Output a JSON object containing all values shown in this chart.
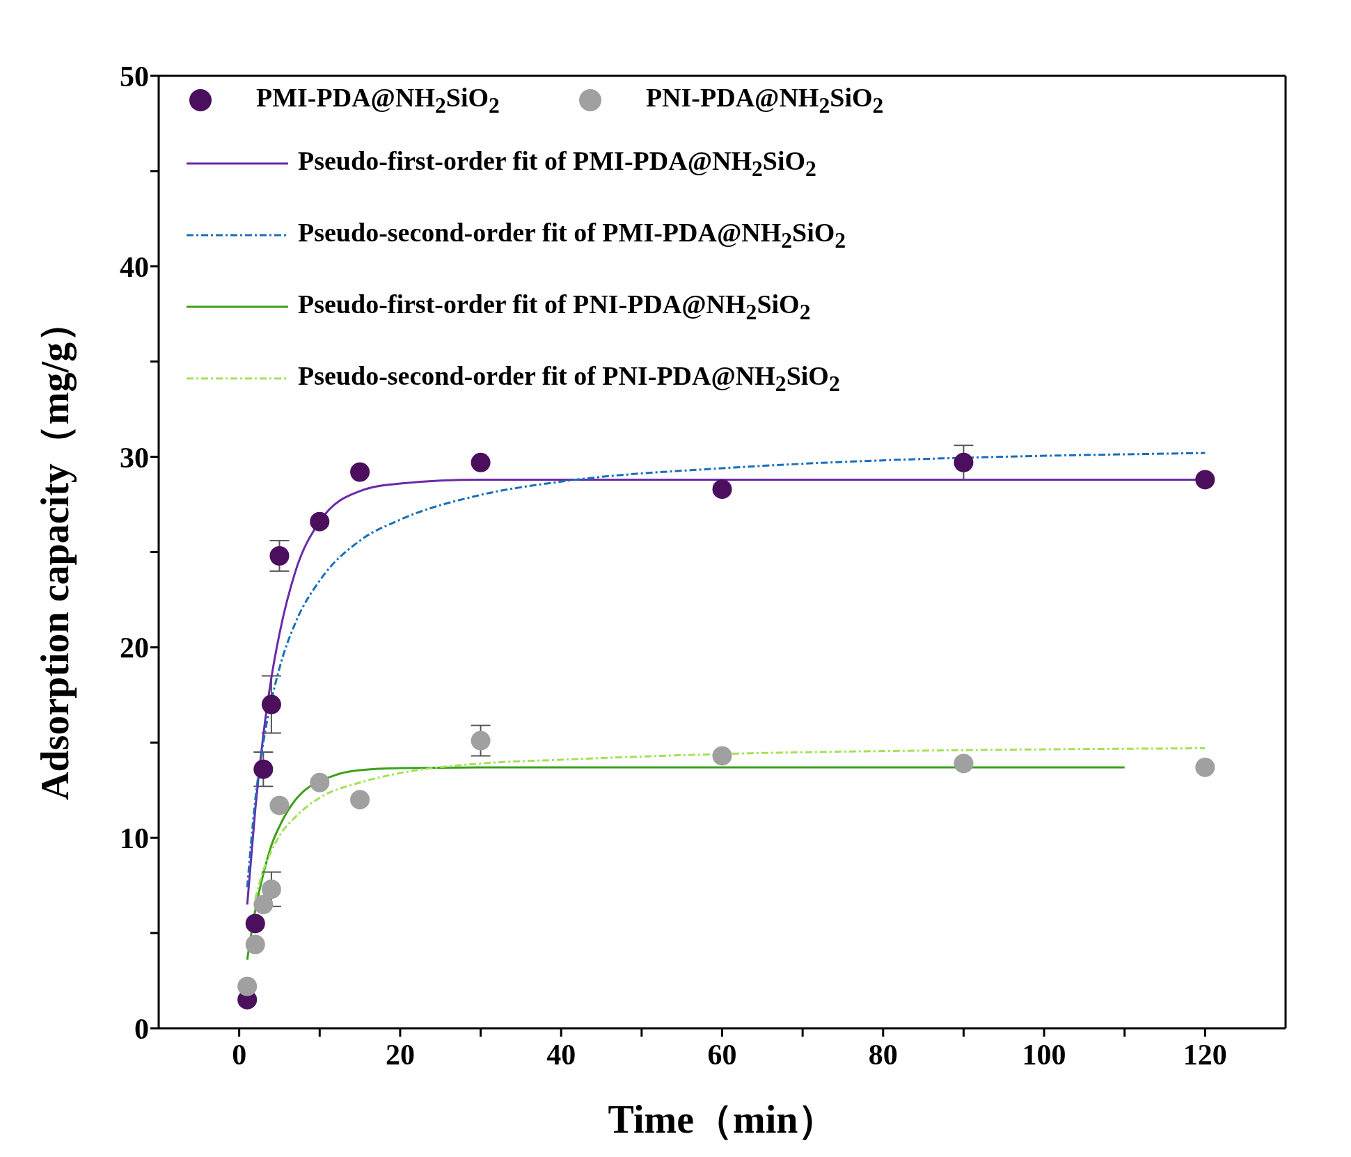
{
  "chart_data": {
    "type": "scatter",
    "xlabel": "Time（min）",
    "ylabel": "Adsorption capacity（mg/g）",
    "xlim": [
      -10,
      130
    ],
    "xticks": [
      0,
      {
        "value": 10,
        "label": null
      },
      20,
      {
        "value": 30,
        "label": null
      },
      40,
      {
        "value": 50,
        "label": null
      },
      60,
      {
        "value": 70,
        "label": null
      },
      80,
      {
        "value": 90,
        "label": null
      },
      100,
      {
        "value": 110,
        "label": null
      },
      120
    ],
    "ylim": [
      0,
      50
    ],
    "yticks": [
      0,
      {
        "value": 5,
        "label": null
      },
      10,
      {
        "value": 15,
        "label": null
      },
      20,
      {
        "value": 25,
        "label": null
      },
      30,
      {
        "value": 35,
        "label": null
      },
      40,
      {
        "value": 45,
        "label": null
      },
      50
    ],
    "grid": false,
    "legend": "top left",
    "marker": "circle",
    "series": [
      {
        "name": "PMI-PDA@NH$_{2}$SiO$_{2}$",
        "color": "#4b0f5e",
        "x": [
          1,
          2,
          3,
          4,
          5,
          10,
          15,
          30,
          60,
          90,
          120
        ],
        "values": [
          1.5,
          5.5,
          13.6,
          17.0,
          24.8,
          26.6,
          29.2,
          29.7,
          28.3,
          29.7,
          28.8
        ],
        "errors": [
          null,
          null,
          0.9,
          1.5,
          0.8,
          null,
          null,
          null,
          null,
          0.9,
          null
        ]
      },
      {
        "name": "PNI-PDA@NH$_{2}$SiO$_{2}$",
        "color": "#a0a0a0",
        "x": [
          1,
          2,
          3,
          4,
          5,
          10,
          15,
          30,
          60,
          90,
          120
        ],
        "values": [
          2.2,
          4.4,
          6.5,
          7.3,
          11.7,
          12.9,
          12.0,
          15.1,
          14.3,
          13.9,
          13.7
        ],
        "errors": [
          null,
          null,
          null,
          0.9,
          null,
          null,
          null,
          0.8,
          null,
          null,
          null
        ]
      },
      {
        "type": "line",
        "name": "Pseudo-first-order fit of PMI-PDA@NH$_{2}$SiO$_{2}$",
        "color": "#6a2aa8",
        "line_style": "solid",
        "marker": "none",
        "x": [
          1,
          2,
          3,
          4,
          5,
          7,
          10,
          15,
          20,
          30,
          60,
          90,
          120
        ],
        "values": [
          6.5,
          11.5,
          15.4,
          18.4,
          20.7,
          24.0,
          26.6,
          28.2,
          28.6,
          28.8,
          28.8,
          28.8,
          28.8
        ]
      },
      {
        "type": "line",
        "name": "Pseudo-second-order fit of PMI-PDA@NH$_{2}$SiO$_{2}$",
        "color": "#1a6fb8",
        "line_style": "dashed",
        "marker": "none",
        "x": [
          1,
          2,
          3,
          5,
          7,
          10,
          15,
          20,
          30,
          40,
          60,
          120
        ],
        "values": [
          7.4,
          12.0,
          15.0,
          18.9,
          21.3,
          23.5,
          25.6,
          26.7,
          28.0,
          28.7,
          29.4,
          30.2
        ]
      },
      {
        "type": "line",
        "name": "Pseudo-first-order fit of PNI-PDA@NH$_{2}$SiO$_{2}$",
        "color": "#3aa01a",
        "line_style": "solid",
        "marker": "none",
        "x": [
          1,
          2,
          3,
          4,
          5,
          7,
          12,
          15,
          20,
          30,
          60,
          110
        ],
        "values": [
          3.6,
          6.2,
          8.1,
          9.6,
          10.6,
          12.0,
          13.3,
          13.55,
          13.66,
          13.7,
          13.7,
          13.7
        ]
      },
      {
        "type": "line",
        "name": "Pseudo-second-order fit of PNI-PDA@NH$_{2}$SiO$_{2}$",
        "color": "#a6e05a",
        "line_style": "dashed",
        "marker": "none",
        "x": [
          2,
          3,
          4,
          5,
          7,
          10,
          15,
          20,
          30,
          40,
          60,
          90,
          120
        ],
        "values": [
          6.8,
          8.3,
          9.3,
          10.1,
          11.1,
          12.1,
          12.9,
          13.4,
          13.9,
          14.1,
          14.4,
          14.6,
          14.7
        ]
      }
    ]
  }
}
